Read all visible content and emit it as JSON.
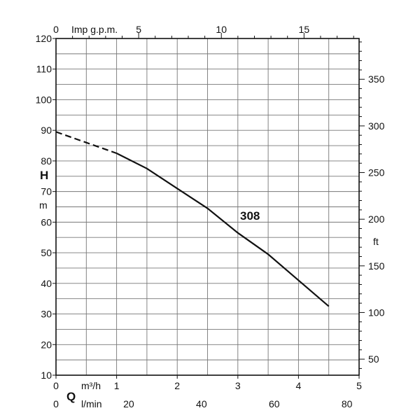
{
  "chart_data": {
    "type": "line",
    "title": "",
    "grid": true,
    "series": [
      {
        "name": "308",
        "x": [
          0.0,
          0.5,
          1.0,
          1.5,
          2.0,
          2.5,
          3.0,
          3.5,
          4.0,
          4.5
        ],
        "y": [
          89.5,
          86.0,
          82.5,
          77.5,
          71.0,
          64.5,
          56.5,
          49.5,
          41.0,
          32.5
        ],
        "extrapolated_until_x": 1.0
      }
    ],
    "axes": {
      "bottom_m3h": {
        "label": "m³/h",
        "range": [
          0,
          5
        ],
        "ticks": [
          "0",
          "1",
          "2",
          "3",
          "4",
          "5"
        ]
      },
      "bottom_lmin": {
        "label": "l/min",
        "range": [
          0,
          83.333
        ],
        "ticks": [
          "0",
          "20",
          "40",
          "60",
          "80"
        ]
      },
      "flow_symbol": "Q",
      "top_impgpm": {
        "label": "Imp g.p.m.",
        "range": [
          0,
          18.33
        ],
        "ticks": [
          "0",
          "5",
          "10",
          "15"
        ]
      },
      "left_m": {
        "symbol": "H",
        "unit": "m",
        "range": [
          10,
          120
        ],
        "ticks": [
          "10",
          "20",
          "30",
          "40",
          "50",
          "60",
          "70",
          "80",
          "90",
          "100",
          "110",
          "120"
        ]
      },
      "right_ft": {
        "unit": "ft",
        "range": [
          32.8,
          393.7
        ],
        "ticks": [
          "50",
          "100",
          "150",
          "200",
          "250",
          "300",
          "350"
        ]
      }
    },
    "curve_label": "308"
  }
}
